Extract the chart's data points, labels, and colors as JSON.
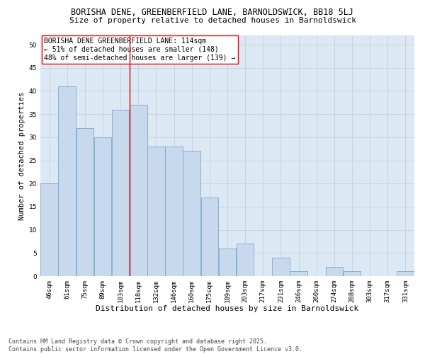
{
  "title1": "BORISHA DENE, GREENBERFIELD LANE, BARNOLDSWICK, BB18 5LJ",
  "title2": "Size of property relative to detached houses in Barnoldswick",
  "xlabel": "Distribution of detached houses by size in Barnoldswick",
  "ylabel": "Number of detached properties",
  "categories": [
    "46sqm",
    "61sqm",
    "75sqm",
    "89sqm",
    "103sqm",
    "118sqm",
    "132sqm",
    "146sqm",
    "160sqm",
    "175sqm",
    "189sqm",
    "203sqm",
    "217sqm",
    "231sqm",
    "246sqm",
    "260sqm",
    "274sqm",
    "288sqm",
    "303sqm",
    "317sqm",
    "331sqm"
  ],
  "values": [
    20,
    41,
    32,
    30,
    36,
    37,
    28,
    28,
    27,
    17,
    6,
    7,
    0,
    4,
    1,
    0,
    2,
    1,
    0,
    0,
    1
  ],
  "bar_color": "#c9d9ed",
  "bar_edge_color": "#7aaad0",
  "grid_color": "#c8d4e3",
  "background_color": "#dde8f5",
  "vline_x_index": 5,
  "vline_color": "#cc0000",
  "annotation_text": "BORISHA DENE GREENBERFIELD LANE: 114sqm\n← 51% of detached houses are smaller (148)\n48% of semi-detached houses are larger (139) →",
  "ylim": [
    0,
    52
  ],
  "yticks": [
    0,
    5,
    10,
    15,
    20,
    25,
    30,
    35,
    40,
    45,
    50
  ],
  "footnote": "Contains HM Land Registry data © Crown copyright and database right 2025.\nContains public sector information licensed under the Open Government Licence v3.0.",
  "title1_fontsize": 8.5,
  "title2_fontsize": 8.0,
  "xlabel_fontsize": 8.0,
  "ylabel_fontsize": 7.5,
  "tick_fontsize": 6.5,
  "annotation_fontsize": 7.0,
  "footnote_fontsize": 6.0
}
